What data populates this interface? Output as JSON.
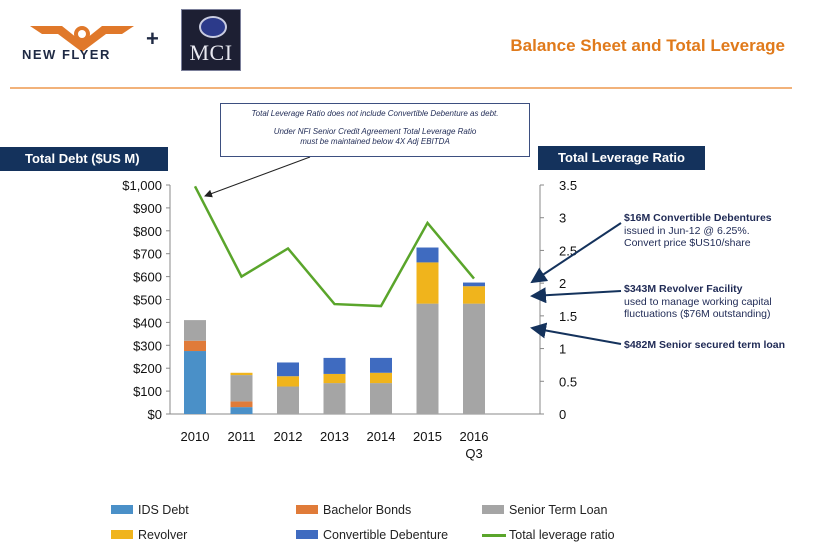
{
  "header": {
    "logo_left_text": "NEW FLYER",
    "logo_plus": "+",
    "logo_right_text": "MCI",
    "title": "Balance Sheet and Total Leverage"
  },
  "note": {
    "line1": "Total Leverage Ratio does not include Convertible Debenture as debt.",
    "line2": "Under NFI Senior Credit Agreement Total Leverage Ratio",
    "line3": "must be maintained below 4X Adj EBITDA"
  },
  "left_axis_label": "Total Debt ($US M)",
  "right_axis_label": "Total Leverage Ratio",
  "annotations": [
    {
      "title": "$16M Convertible Debentures",
      "line1": "issued in Jun-12 @ 6.25%.",
      "line2": "Convert price $US10/share"
    },
    {
      "title": "$343M Revolver Facility",
      "line1": "used to manage working capital",
      "line2": "fluctuations  ($76M outstanding)"
    },
    {
      "title": "$482M Senior secured term loan",
      "line1": "",
      "line2": ""
    }
  ],
  "chart_data": {
    "type": "bar",
    "stacked": true,
    "categories": [
      "2010",
      "2011",
      "2012",
      "2013",
      "2014",
      "2015",
      "2016"
    ],
    "category_sublabels": [
      "",
      "",
      "",
      "",
      "",
      "",
      "Q3"
    ],
    "y_ticks": [
      "$0",
      "$100",
      "$200",
      "$300",
      "$400",
      "$500",
      "$600",
      "$700",
      "$800",
      "$900",
      "$1,000"
    ],
    "y2_ticks": [
      "0",
      "0.5",
      "1",
      "1.5",
      "2",
      "2.5",
      "3",
      "3.5"
    ],
    "ylim": [
      0,
      1000
    ],
    "y2lim": [
      0,
      3.5
    ],
    "series": [
      {
        "name": "IDS Debt",
        "color": "#4a90c8",
        "values": [
          275,
          30,
          0,
          0,
          0,
          0,
          0
        ]
      },
      {
        "name": "Bachelor Bonds",
        "color": "#e07b39",
        "values": [
          45,
          25,
          0,
          0,
          0,
          0,
          0
        ]
      },
      {
        "name": "Senior Term Loan",
        "color": "#a5a5a5",
        "values": [
          90,
          115,
          120,
          135,
          135,
          482,
          482
        ]
      },
      {
        "name": "Revolver",
        "color": "#f0b41c",
        "values": [
          0,
          10,
          45,
          40,
          45,
          180,
          76
        ]
      },
      {
        "name": "Convertible Debenture",
        "color": "#3f6bc0",
        "values": [
          0,
          0,
          60,
          70,
          65,
          65,
          16
        ]
      }
    ],
    "line": {
      "name": "Total leverage ratio",
      "color": "#5aa52b",
      "values": [
        3.48,
        2.1,
        2.53,
        1.68,
        1.65,
        2.92,
        2.07
      ]
    }
  }
}
